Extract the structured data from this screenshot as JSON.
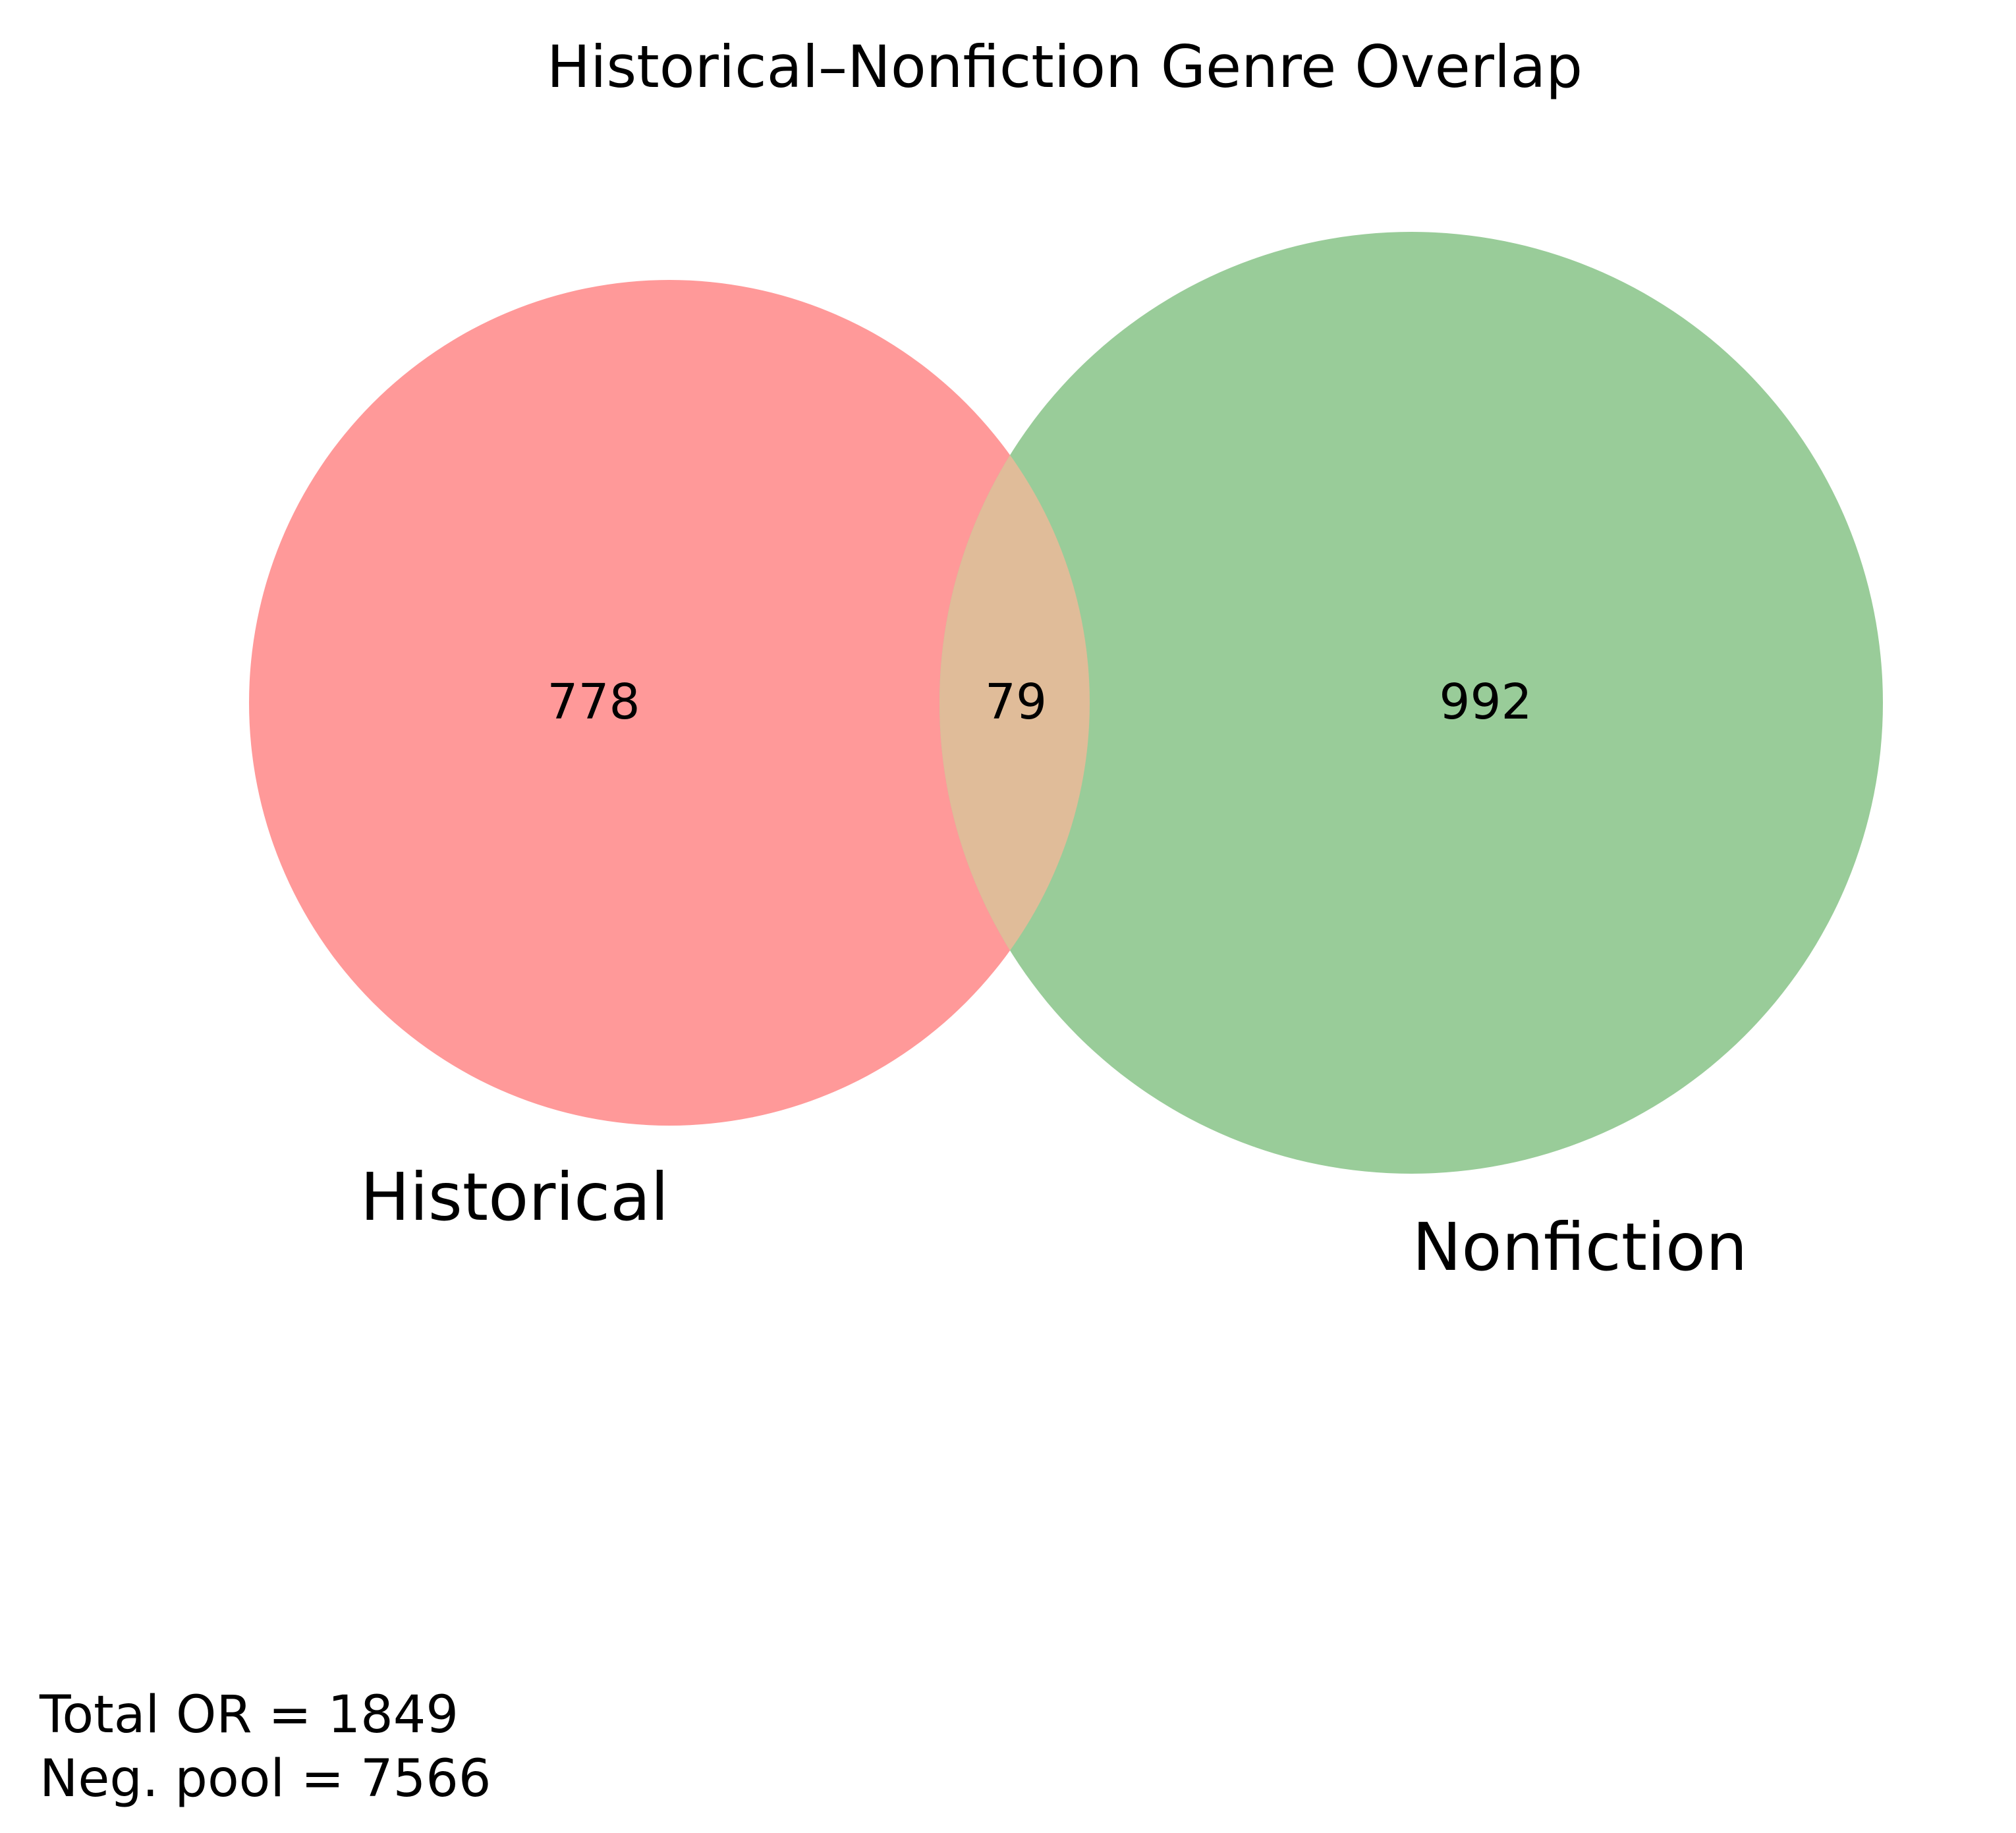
{
  "title": "Historical–Nonfiction Genre Overlap",
  "chart_data": {
    "type": "venn",
    "sets": [
      {
        "name": "Historical",
        "only_count": "778",
        "color": "#ff9999"
      },
      {
        "name": "Nonfiction",
        "only_count": "992",
        "color": "#99cc99"
      }
    ],
    "intersection": {
      "count": "79",
      "color": "#e0bc99"
    }
  },
  "footnote": {
    "total": "Total OR = 1849",
    "neg_pool": "Neg. pool = 7566"
  }
}
